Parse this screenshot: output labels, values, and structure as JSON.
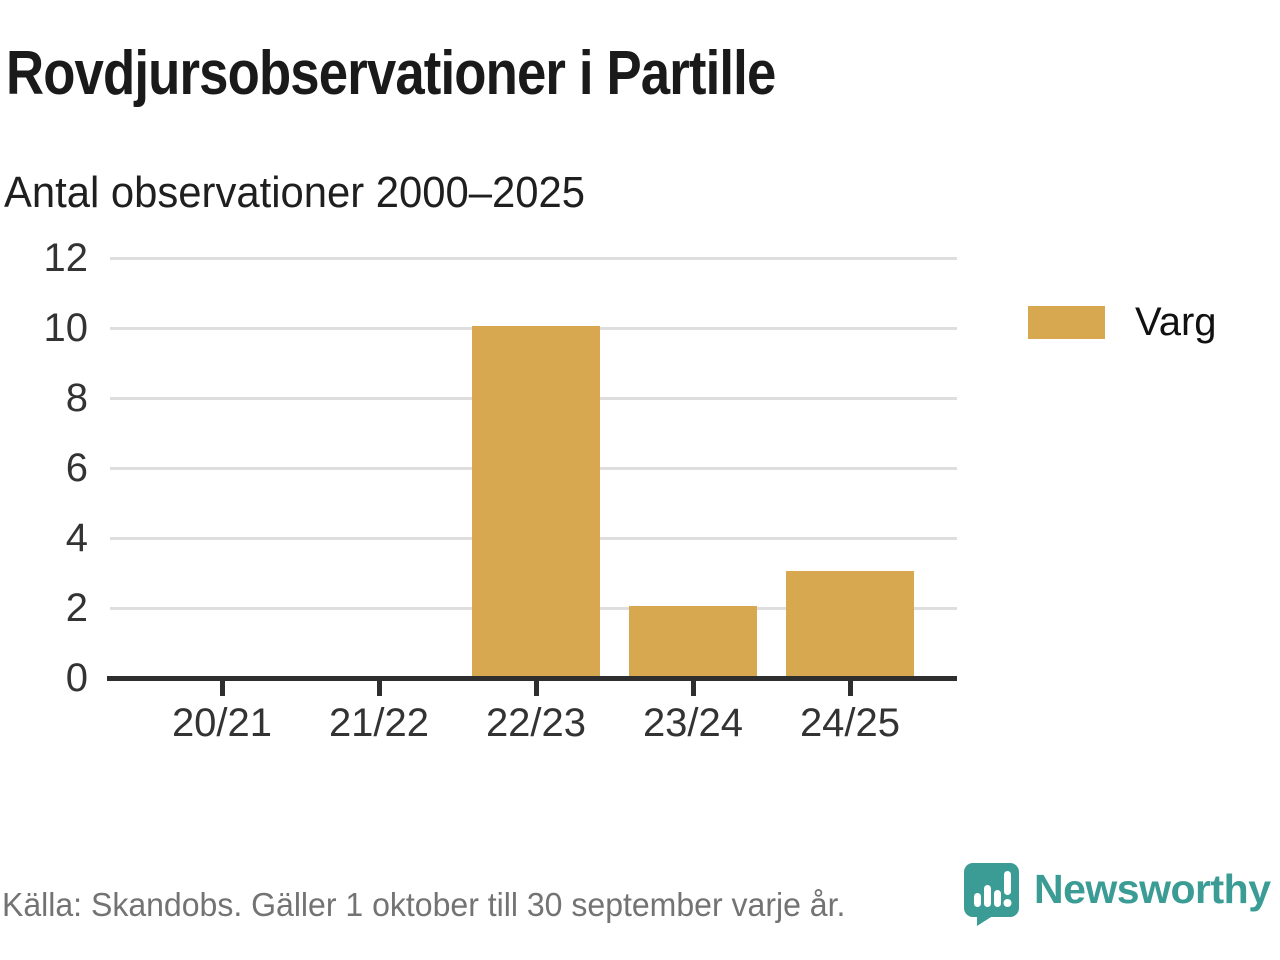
{
  "header": {
    "title": "Rovdjursobservationer i Partille",
    "subtitle": "Antal observationer 2000–2025"
  },
  "chart_data": {
    "type": "bar",
    "categories": [
      "20/21",
      "21/22",
      "22/23",
      "23/24",
      "24/25"
    ],
    "series": [
      {
        "name": "Varg",
        "values": [
          0,
          0,
          10,
          2,
          3
        ]
      }
    ],
    "title": "Rovdjursobservationer i Partille",
    "subtitle": "Antal observationer 2000–2025",
    "xlabel": "",
    "ylabel": "",
    "ylim": [
      0,
      12
    ],
    "yticks": [
      0,
      2,
      4,
      6,
      8,
      10,
      12
    ],
    "grid": "horizontal",
    "legend_position": "right",
    "bar_color": "#d7a84f"
  },
  "legend": {
    "items": [
      {
        "label": "Varg",
        "color": "#d7a84f"
      }
    ]
  },
  "footer": {
    "source": "Källa: Skandobs. Gäller 1 oktober till 30 september varje år.",
    "brand": "Newsworthy",
    "brand_color": "#3a9c94"
  }
}
